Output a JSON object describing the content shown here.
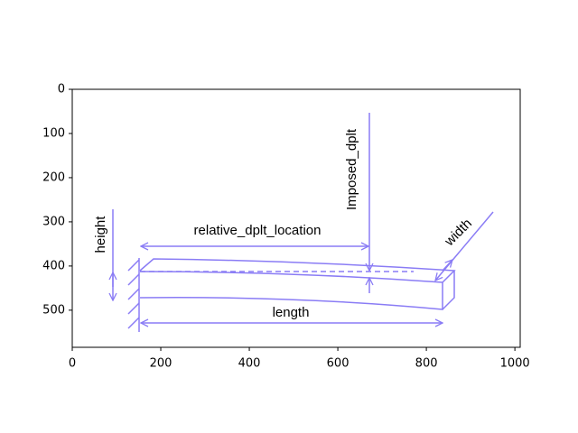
{
  "chart_data": {
    "type": "image",
    "xlim": [
      0,
      1012
    ],
    "ylim": [
      584,
      0
    ],
    "xticks": [
      0,
      200,
      400,
      600,
      800,
      1000
    ],
    "yticks": [
      0,
      100,
      200,
      300,
      400,
      500
    ],
    "annotations": {
      "imposed": "Imposed_dplt",
      "location": "relative_dplt_location",
      "width": "width",
      "height": "height",
      "length": "length"
    }
  }
}
